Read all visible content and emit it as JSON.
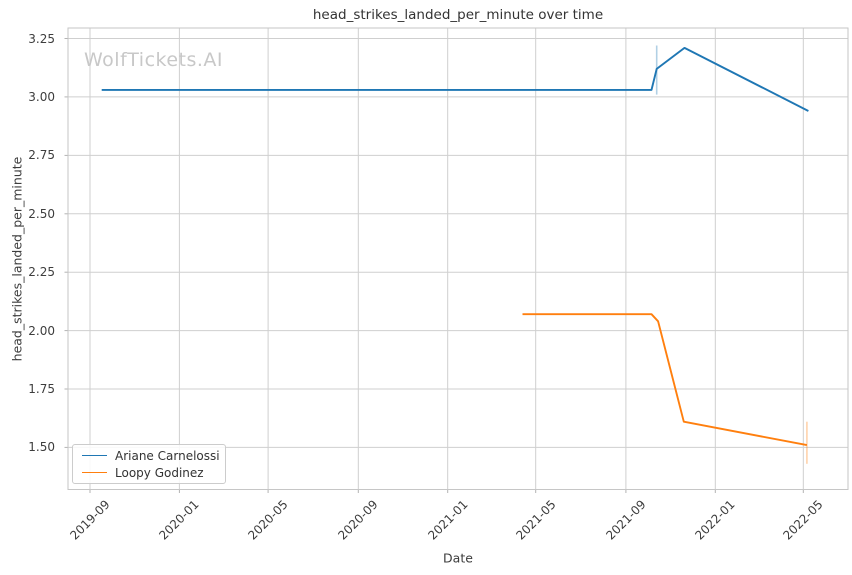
{
  "watermark": "WolfTickets.AI",
  "chart_data": {
    "type": "line",
    "title": "head_strikes_landed_per_minute over time",
    "xlabel": "Date",
    "ylabel": "head_strikes_landed_per_minute",
    "grid": true,
    "legend_position": "lower left",
    "x_range": [
      "2019-08-02",
      "2022-07-01"
    ],
    "ylim": [
      1.32,
      3.295
    ],
    "yticks": [
      1.5,
      1.75,
      2.0,
      2.25,
      2.5,
      2.75,
      3.0,
      3.25
    ],
    "ytick_labels": [
      "1.50",
      "1.75",
      "2.00",
      "2.25",
      "2.50",
      "2.75",
      "3.00",
      "3.25"
    ],
    "xticks": [
      "2019-09-01",
      "2020-01-01",
      "2020-05-01",
      "2020-09-01",
      "2021-01-01",
      "2021-05-01",
      "2021-09-01",
      "2022-01-01",
      "2022-05-01"
    ],
    "xtick_labels": [
      "2019-09",
      "2020-01",
      "2020-05",
      "2020-09",
      "2021-01",
      "2021-05",
      "2021-09",
      "2022-01",
      "2022-05"
    ],
    "series": [
      {
        "name": "Ariane Carnelossi",
        "color": "#1f77b4",
        "points": [
          {
            "date": "2019-09-17",
            "value": 3.03
          },
          {
            "date": "2021-10-06",
            "value": 3.03
          },
          {
            "date": "2021-10-13",
            "value": 3.12
          },
          {
            "date": "2021-11-20",
            "value": 3.21
          },
          {
            "date": "2022-05-08",
            "value": 2.94
          }
        ],
        "error_bars": [
          {
            "date": "2021-10-13",
            "low": 3.01,
            "high": 3.22
          }
        ]
      },
      {
        "name": "Loopy Godinez",
        "color": "#ff7f0e",
        "points": [
          {
            "date": "2021-04-13",
            "value": 2.07
          },
          {
            "date": "2021-10-06",
            "value": 2.07
          },
          {
            "date": "2021-10-15",
            "value": 2.04
          },
          {
            "date": "2021-11-19",
            "value": 1.61
          },
          {
            "date": "2022-05-06",
            "value": 1.51
          }
        ],
        "error_bars": [
          {
            "date": "2022-05-06",
            "low": 1.43,
            "high": 1.61
          }
        ]
      }
    ]
  }
}
